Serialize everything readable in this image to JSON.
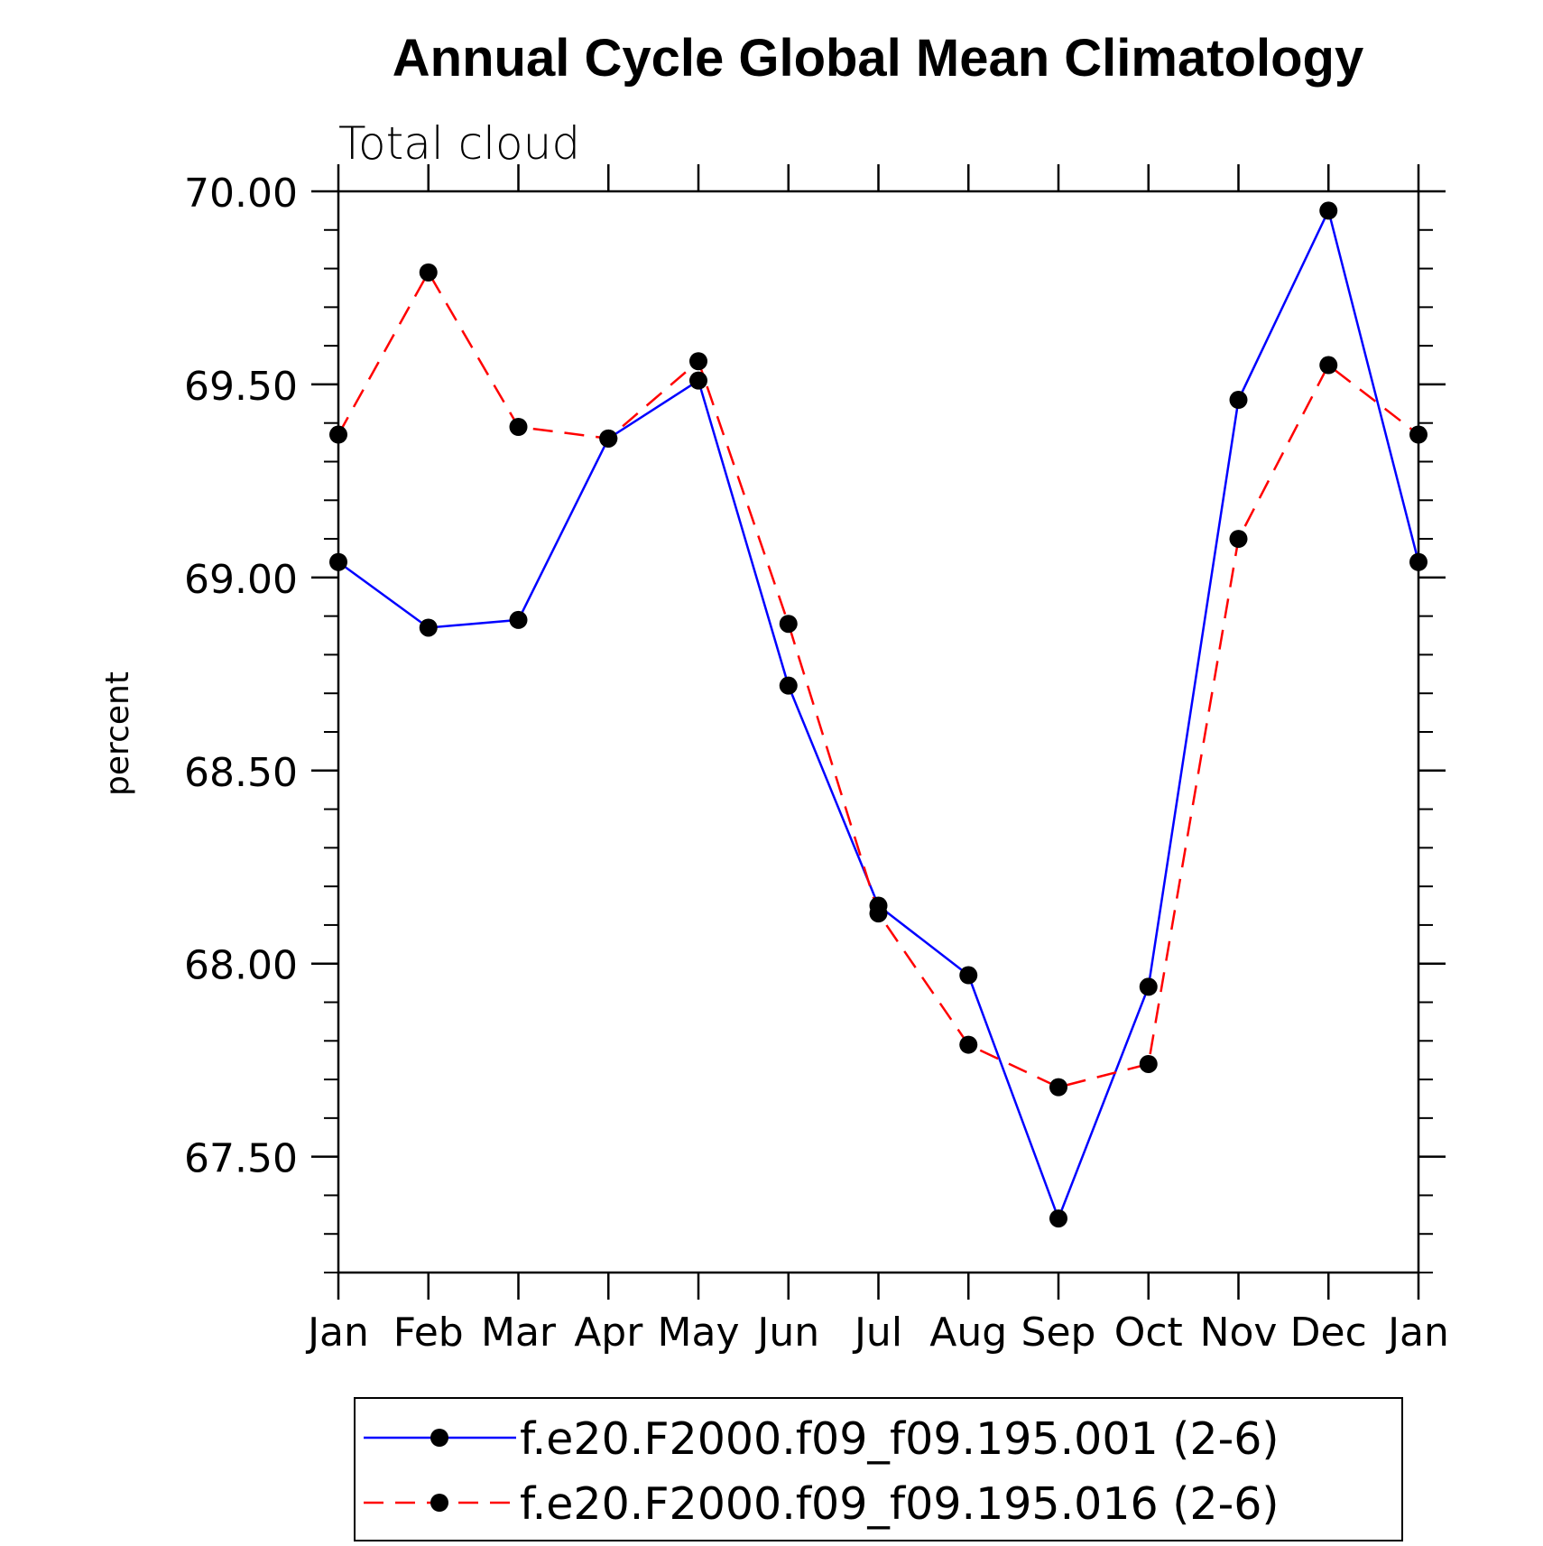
{
  "chart_data": {
    "type": "line",
    "title": "Annual Cycle Global Mean Climatology",
    "subtitle": "Total cloud",
    "xlabel": "",
    "ylabel": "percent",
    "categories": [
      "Jan",
      "Feb",
      "Mar",
      "Apr",
      "May",
      "Jun",
      "Jul",
      "Aug",
      "Sep",
      "Oct",
      "Nov",
      "Dec",
      "Jan"
    ],
    "ylim": [
      67.2,
      70.0
    ],
    "yticks": [
      67.5,
      68.0,
      68.5,
      69.0,
      69.5,
      70.0
    ],
    "ytick_labels": [
      "67.50",
      "68.00",
      "68.50",
      "69.00",
      "69.50",
      "70.00"
    ],
    "grid": false,
    "legend_position": "bottom",
    "series": [
      {
        "name": "f.e20.F2000.f09_f09.195.001 (2-6)",
        "color": "#0000ff",
        "line_style": "solid",
        "marker": "filled-circle",
        "values": [
          69.04,
          68.87,
          68.89,
          69.36,
          69.51,
          68.72,
          68.15,
          67.97,
          67.34,
          67.94,
          69.46,
          69.95,
          69.04
        ]
      },
      {
        "name": "f.e20.F2000.f09_f09.195.016 (2-6)",
        "color": "#ff0000",
        "line_style": "dashed",
        "marker": "filled-circle",
        "values": [
          69.37,
          69.79,
          69.39,
          69.36,
          69.56,
          68.88,
          68.13,
          67.79,
          67.68,
          67.74,
          69.1,
          69.55,
          69.37
        ]
      }
    ]
  }
}
